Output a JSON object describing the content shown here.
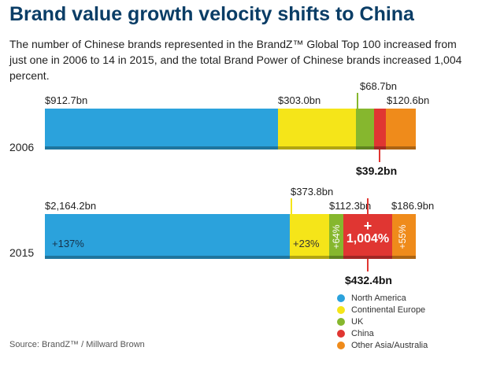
{
  "title": "Brand value growth velocity shifts to China",
  "subtitle": "The number of Chinese brands represented in the BrandZ™ Global Top 100 increased from just one in 2006 to 14 in 2015, and the total Brand Power of Chinese brands increased 1,004 percent.",
  "source": "Source:  BrandZ™ / Millward Brown",
  "chart_data": {
    "type": "bar",
    "orientation": "horizontal",
    "stacked": true,
    "title": "Brand value growth velocity shifts to China",
    "categories": [
      "2006",
      "2015"
    ],
    "series": [
      {
        "name": "North America",
        "color": "#2ba2dc",
        "values": [
          912.7,
          2164.2
        ],
        "labels": [
          "$912.7bn",
          "$2,164.2bn"
        ],
        "growth": "+137%"
      },
      {
        "name": "Continental Europe",
        "color": "#f5e519",
        "values": [
          303.0,
          373.8
        ],
        "labels": [
          "$303.0bn",
          "$373.8bn"
        ],
        "growth": "+23%"
      },
      {
        "name": "UK",
        "color": "#86b72e",
        "values": [
          68.7,
          112.3
        ],
        "labels": [
          "$68.7bn",
          "$112.3bn"
        ],
        "growth": "+64%"
      },
      {
        "name": "China",
        "color": "#e03632",
        "values": [
          39.2,
          432.4
        ],
        "labels": [
          "$39.2bn",
          "$432.4bn"
        ],
        "growth": "1,004%",
        "growth_sign": "+"
      },
      {
        "name": "Other Asia/Australia",
        "color": "#ef8b1b",
        "values": [
          120.6,
          186.9
        ],
        "labels": [
          "$120.6bn",
          "$186.9bn"
        ],
        "growth": "+55%"
      }
    ],
    "legend_position": "bottom-right",
    "grid": false
  }
}
